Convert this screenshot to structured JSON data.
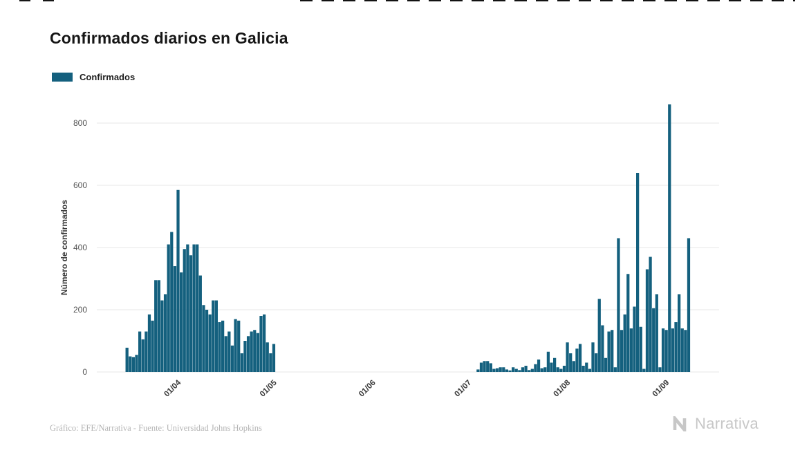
{
  "page": {
    "title": "Confirmados diarios en Galicia",
    "footer_credit": "Gráfico: EFE/Narrativa - Fuente: Universidad Johns Hopkins",
    "brand": "Narrativa"
  },
  "legend": {
    "label": "Confirmados",
    "color": "#14607e"
  },
  "chart_data": {
    "type": "bar",
    "title": "Confirmados diarios en Galicia",
    "series_name": "Confirmados",
    "xlabel": "",
    "ylabel": "Número de confirmados",
    "ylim": [
      0,
      800
    ],
    "yticks": [
      0,
      200,
      400,
      600,
      800
    ],
    "xticks": [
      "01/04",
      "01/05",
      "01/06",
      "01/07",
      "01/08",
      "01/09"
    ],
    "x_frequency": "daily",
    "grid": "horizontal",
    "legend_position": "top-left",
    "bar_color": "#14607e",
    "dates": [
      "06/03",
      "07/03",
      "08/03",
      "09/03",
      "10/03",
      "11/03",
      "12/03",
      "13/03",
      "14/03",
      "15/03",
      "16/03",
      "17/03",
      "18/03",
      "19/03",
      "20/03",
      "21/03",
      "22/03",
      "23/03",
      "24/03",
      "25/03",
      "26/03",
      "27/03",
      "28/03",
      "29/03",
      "30/03",
      "31/03",
      "01/04",
      "02/04",
      "03/04",
      "04/04",
      "05/04",
      "06/04",
      "07/04",
      "08/04",
      "09/04",
      "10/04",
      "11/04",
      "12/04",
      "13/04",
      "14/04",
      "15/04",
      "16/04",
      "17/04",
      "18/04",
      "19/04",
      "20/04",
      "21/04",
      "22/04",
      "23/04",
      "24/04",
      "25/04",
      "26/04",
      "27/04",
      "28/04",
      "29/04",
      "30/04",
      "01/05",
      "02/05",
      "03/05",
      "04/05",
      "05/05",
      "06/05",
      "07/05",
      "08/05",
      "09/05",
      "10/05",
      "11/05",
      "12/05",
      "13/05",
      "14/05",
      "15/05",
      "16/05",
      "17/05",
      "18/05",
      "19/05",
      "20/05",
      "21/05",
      "22/05",
      "23/05",
      "24/05",
      "25/05",
      "26/05",
      "27/05",
      "28/05",
      "29/05",
      "30/05",
      "31/05",
      "01/06",
      "02/06",
      "03/06",
      "04/06",
      "05/06",
      "06/06",
      "07/06",
      "08/06",
      "09/06",
      "10/06",
      "11/06",
      "12/06",
      "13/06",
      "14/06",
      "15/06",
      "16/06",
      "17/06",
      "18/06",
      "19/06",
      "20/06",
      "21/06",
      "22/06",
      "23/06",
      "24/06",
      "25/06",
      "26/06",
      "27/06",
      "28/06",
      "29/06",
      "30/06",
      "01/07",
      "02/07",
      "03/07",
      "04/07",
      "05/07",
      "06/07",
      "07/07",
      "08/07",
      "09/07",
      "10/07",
      "11/07",
      "12/07",
      "13/07",
      "14/07",
      "15/07",
      "16/07",
      "17/07",
      "18/07",
      "19/07",
      "20/07",
      "21/07",
      "22/07",
      "23/07",
      "24/07",
      "25/07",
      "26/07",
      "27/07",
      "28/07",
      "29/07",
      "30/07",
      "31/07",
      "01/08",
      "02/08",
      "03/08",
      "04/08",
      "05/08",
      "06/08",
      "07/08",
      "08/08",
      "09/08",
      "10/08",
      "11/08",
      "12/08",
      "13/08",
      "14/08",
      "15/08",
      "16/08",
      "17/08",
      "18/08",
      "19/08",
      "20/08",
      "21/08",
      "22/08",
      "23/08",
      "24/08",
      "25/08",
      "26/08",
      "27/08",
      "28/08",
      "29/08",
      "30/08",
      "31/08",
      "01/09",
      "02/09",
      "03/09",
      "04/09",
      "05/09",
      "06/09",
      "07/09"
    ],
    "values": [
      0,
      0,
      0,
      0,
      0,
      0,
      0,
      0,
      0,
      78,
      50,
      48,
      55,
      130,
      105,
      130,
      185,
      165,
      295,
      295,
      230,
      250,
      410,
      450,
      340,
      585,
      320,
      395,
      410,
      375,
      410,
      410,
      310,
      215,
      200,
      185,
      230,
      230,
      160,
      165,
      115,
      130,
      85,
      170,
      165,
      60,
      100,
      115,
      130,
      135,
      125,
      180,
      185,
      95,
      60,
      90,
      0,
      0,
      0,
      0,
      0,
      0,
      0,
      0,
      0,
      0,
      0,
      0,
      0,
      0,
      0,
      0,
      0,
      0,
      0,
      0,
      0,
      0,
      0,
      0,
      0,
      0,
      0,
      0,
      0,
      0,
      0,
      0,
      0,
      0,
      0,
      0,
      0,
      0,
      0,
      0,
      0,
      0,
      0,
      0,
      0,
      0,
      0,
      0,
      0,
      0,
      0,
      0,
      0,
      0,
      0,
      0,
      0,
      0,
      0,
      0,
      0,
      0,
      0,
      8,
      30,
      35,
      35,
      28,
      10,
      12,
      15,
      15,
      8,
      5,
      15,
      10,
      6,
      15,
      20,
      6,
      10,
      25,
      40,
      12,
      15,
      65,
      30,
      45,
      15,
      10,
      20,
      95,
      60,
      35,
      75,
      90,
      20,
      30,
      10,
      95,
      60,
      235,
      150,
      45,
      130,
      135,
      15,
      430,
      135,
      185,
      315,
      140,
      210,
      640,
      145,
      10,
      330,
      370,
      205,
      250,
      15,
      140,
      135,
      860,
      140,
      160,
      250,
      140,
      135,
      430
    ]
  }
}
